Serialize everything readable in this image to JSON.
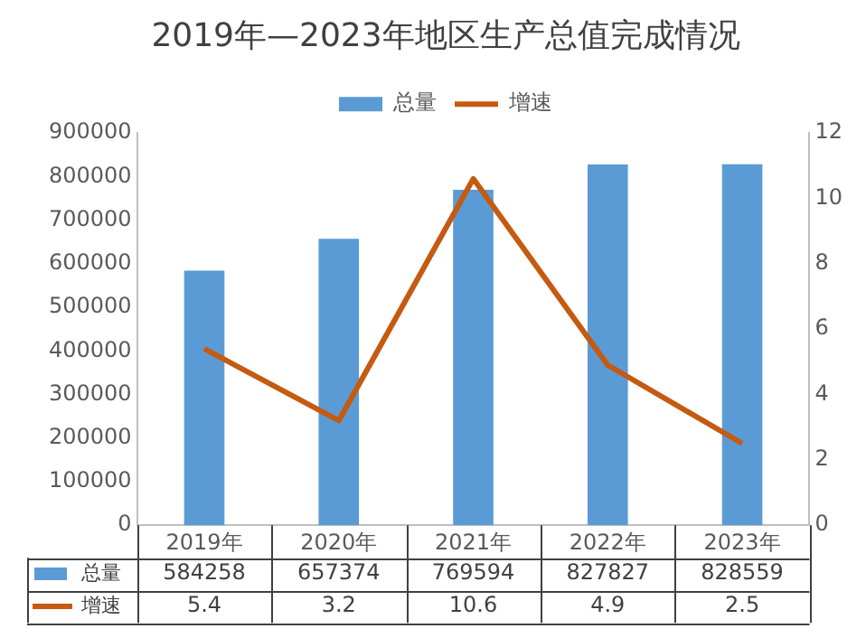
{
  "chart_data": {
    "type": "bar",
    "title": "2019年—2023年地区生产总值完成情况",
    "categories": [
      "2019年",
      "2020年",
      "2021年",
      "2022年",
      "2023年"
    ],
    "series": [
      {
        "name": "总量",
        "color": "#5b9bd5",
        "values": [
          584258,
          657374,
          769594,
          827827,
          828559
        ]
      },
      {
        "name": "增速",
        "type": "line",
        "axis": "y2",
        "color": "#c55a11",
        "values": [
          5.4,
          3.2,
          10.6,
          4.9,
          2.5
        ]
      }
    ],
    "ylim": [
      0,
      900000
    ],
    "yticks": [
      0,
      100000,
      200000,
      300000,
      400000,
      500000,
      600000,
      700000,
      800000,
      900000
    ],
    "y2lim": [
      0,
      12
    ],
    "y2ticks": [
      0,
      2,
      4,
      6,
      8,
      10,
      12
    ],
    "grid": false,
    "legend": "top",
    "marker": "none",
    "data_labels": true
  }
}
